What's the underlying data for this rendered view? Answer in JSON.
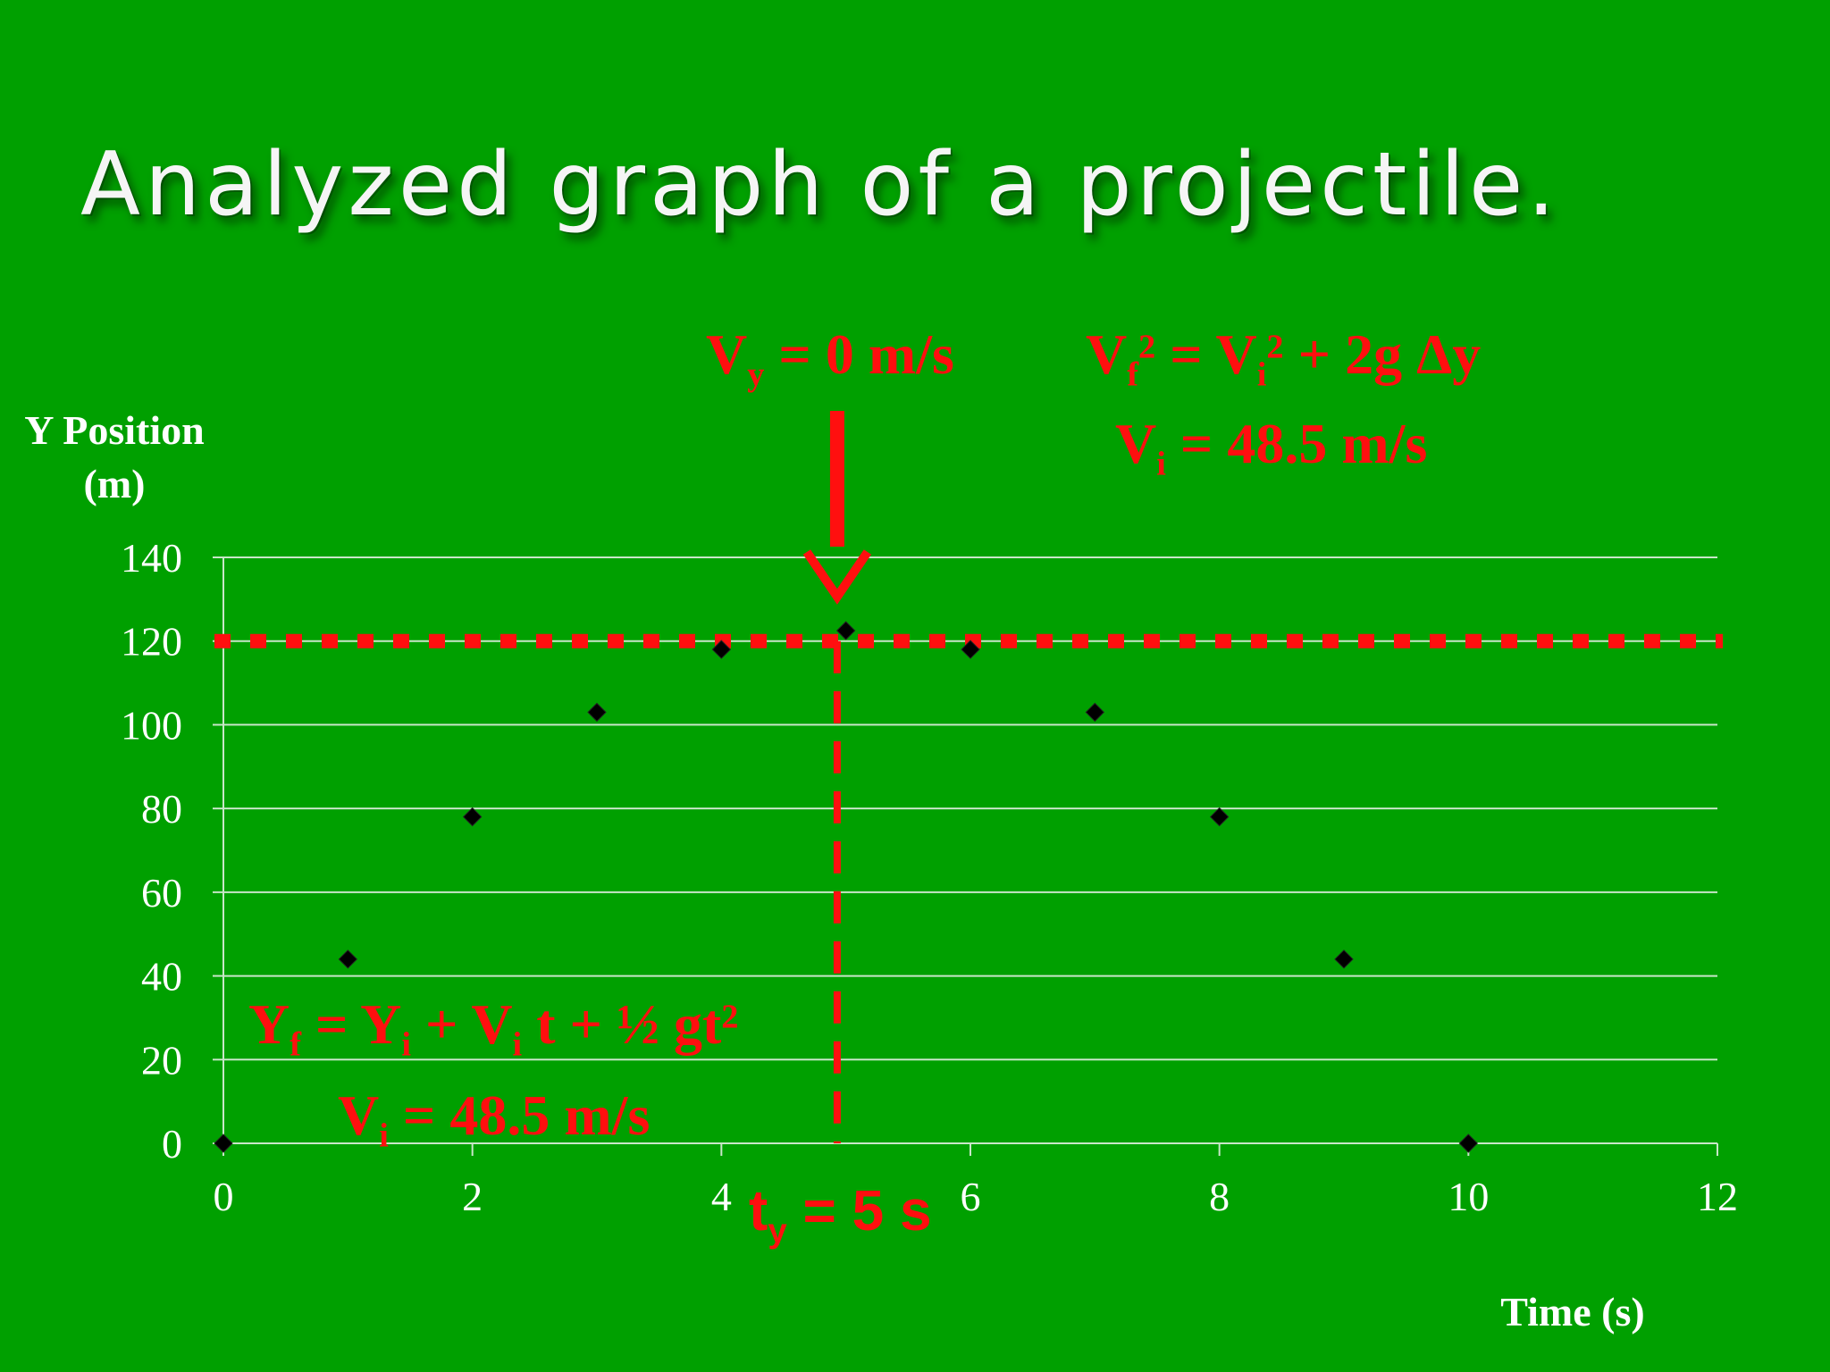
{
  "slide": {
    "title": "Analyzed graph of a projectile."
  },
  "chart_data": {
    "type": "scatter",
    "title": "",
    "xlabel": "Time (s)",
    "ylabel_line1": "Y Position",
    "ylabel_line2": "(m)",
    "xlim": [
      0,
      12
    ],
    "ylim": [
      0,
      140
    ],
    "x_ticks": [
      0,
      2,
      4,
      6,
      8,
      10,
      12
    ],
    "y_ticks": [
      0,
      20,
      40,
      60,
      80,
      100,
      120,
      140
    ],
    "grid": true,
    "marker": "diamond",
    "marker_color": "#000000",
    "series": [
      {
        "points": [
          {
            "x": 0,
            "y": 0
          },
          {
            "x": 1,
            "y": 44
          },
          {
            "x": 2,
            "y": 78
          },
          {
            "x": 3,
            "y": 103
          },
          {
            "x": 4,
            "y": 118
          },
          {
            "x": 5,
            "y": 122.5
          },
          {
            "x": 6,
            "y": 118
          },
          {
            "x": 7,
            "y": 103
          },
          {
            "x": 8,
            "y": 78
          },
          {
            "x": 9,
            "y": 44
          },
          {
            "x": 10,
            "y": 0
          }
        ]
      }
    ],
    "reference_lines": {
      "horizontal_y": 120,
      "vertical_x": 4.93,
      "color": "#ff0f0f"
    }
  },
  "annotations": {
    "vy0": {
      "v": "V",
      "sub": "y",
      "rest": " = 0 m/s"
    },
    "vf": {
      "v1": "V",
      "sub1": "f",
      "sup1": "2",
      "mid": " = V",
      "sub2": "i",
      "sup2": "2",
      "rest": " + 2g Δy"
    },
    "vi_top": {
      "v": "V",
      "sub": "i",
      "rest": " = 48.5 m/s"
    },
    "yf": {
      "y1": "Y",
      "sub1": "f",
      "mid1": " = Y",
      "sub2": "i",
      "mid2": " + V",
      "sub3": "i",
      "rest": " t + ½ gt",
      "sup": "2"
    },
    "vi_bot": {
      "v": "V",
      "sub": "i",
      "rest": " = 48.5 m/s"
    },
    "ty": {
      "t": "t",
      "sub": "y",
      "rest": " = 5 s"
    }
  },
  "colors": {
    "background": "#00a000",
    "annotation": "#ff0f0f",
    "grid": "#c8e6c8"
  }
}
